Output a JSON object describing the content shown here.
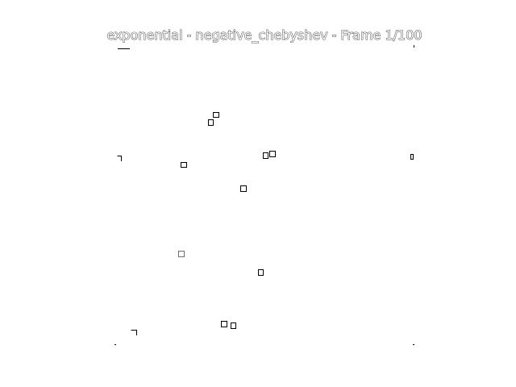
{
  "window": {
    "title": "exponential - negative_chebyshev - Frame 1/100"
  },
  "scene": {
    "icons": {
      "marker": "small-square-marker",
      "corner": "corner-bracket-mark"
    },
    "colors": {
      "background": "#ffffff",
      "foreground": "#000000",
      "faint": "#6f6f6f"
    }
  }
}
